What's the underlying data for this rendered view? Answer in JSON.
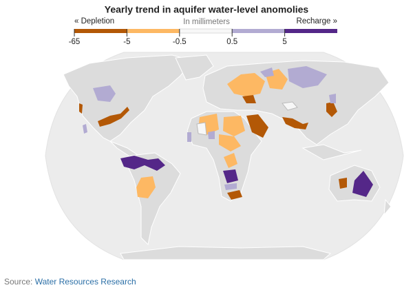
{
  "header": {
    "title": "Yearly trend in aquifer water-level anomolies"
  },
  "legend": {
    "left_label": "« Depletion",
    "unit_label": "In millimeters",
    "right_label": "Recharge »",
    "colors": [
      "#b35806",
      "#fdb863",
      "#f7f7f7",
      "#b2abd2",
      "#542788"
    ],
    "ticks": [
      -65,
      -5,
      -0.5,
      0.5,
      5
    ]
  },
  "source": {
    "label": "Source:",
    "link": "Water Resources Research"
  }
}
